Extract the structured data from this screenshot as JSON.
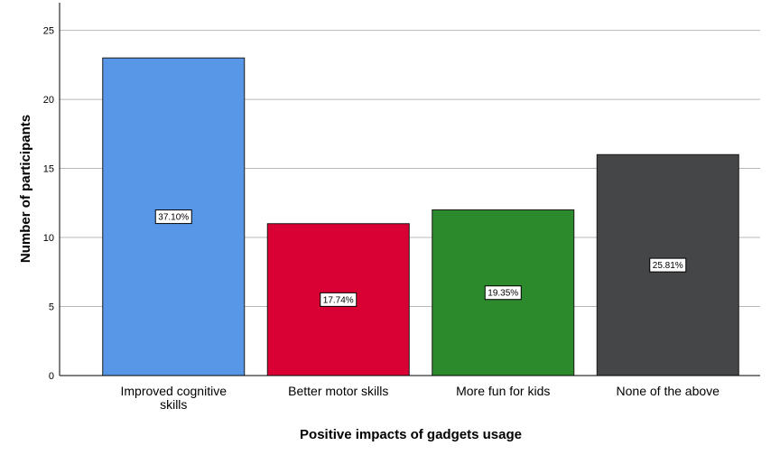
{
  "chart_data": {
    "type": "bar",
    "categories": [
      [
        "Improved cognitive",
        "skills"
      ],
      [
        "Better motor skills"
      ],
      [
        "More fun for kids"
      ],
      [
        "None of the above"
      ]
    ],
    "values": [
      23,
      11,
      12,
      16
    ],
    "data_labels": [
      "37.10%",
      "17.74%",
      "19.35%",
      "25.81%"
    ],
    "colors": [
      "#5897e8",
      "#d90034",
      "#2c8a2c",
      "#454648"
    ],
    "xlabel": "Positive impacts of gadgets usage",
    "ylabel": "Number of participants",
    "ylim": [
      0,
      27
    ],
    "yticks": [
      0,
      5,
      10,
      15,
      20,
      25
    ],
    "grid": true
  }
}
